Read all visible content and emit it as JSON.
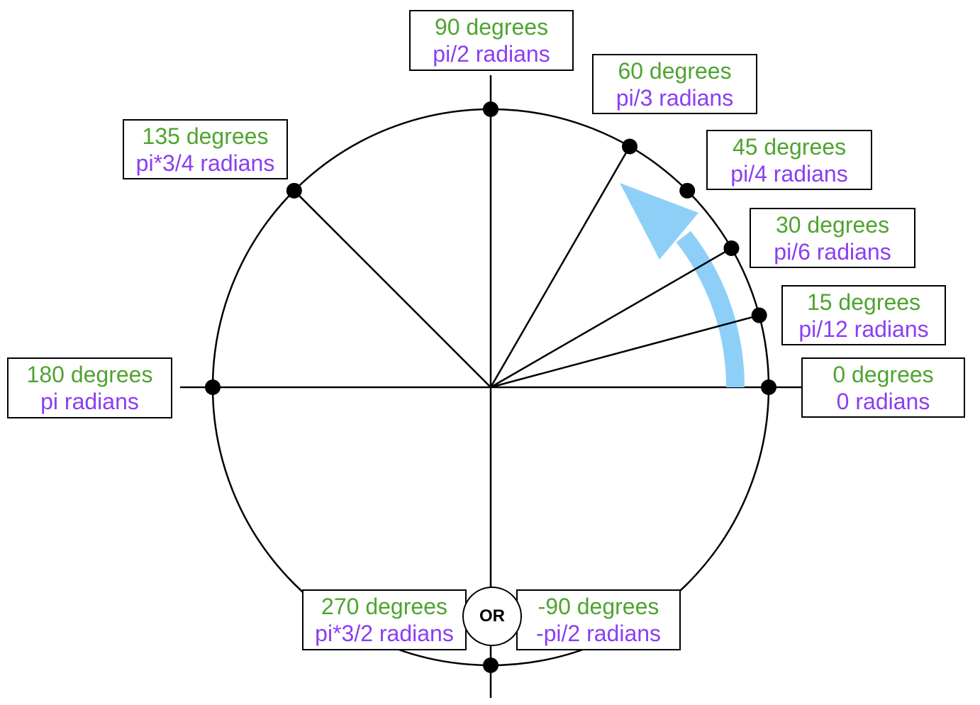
{
  "colors": {
    "degrees": "#4ea42f",
    "radians": "#8a3ef2",
    "arrow": "#8ecff8",
    "line": "#000000"
  },
  "angles": [
    0,
    15,
    30,
    45,
    60,
    90,
    135,
    180,
    270
  ],
  "labels": {
    "a0": {
      "degrees": "0 degrees",
      "radians": "0 radians"
    },
    "a15": {
      "degrees": "15 degrees",
      "radians": "pi/12 radians"
    },
    "a30": {
      "degrees": "30 degrees",
      "radians": "pi/6 radians"
    },
    "a45": {
      "degrees": "45 degrees",
      "radians": "pi/4 radians"
    },
    "a60": {
      "degrees": "60 degrees",
      "radians": "pi/3 radians"
    },
    "a90": {
      "degrees": "90 degrees",
      "radians": "pi/2 radians"
    },
    "a135": {
      "degrees": "135 degrees",
      "radians": "pi*3/4 radians"
    },
    "a180": {
      "degrees": "180 degrees",
      "radians": "pi radians"
    },
    "a270": {
      "degrees": "270 degrees",
      "radians": "pi*3/2 radians"
    },
    "neg90": {
      "degrees": "-90 degrees",
      "radians": "-pi/2 radians"
    }
  },
  "or_text": "OR"
}
